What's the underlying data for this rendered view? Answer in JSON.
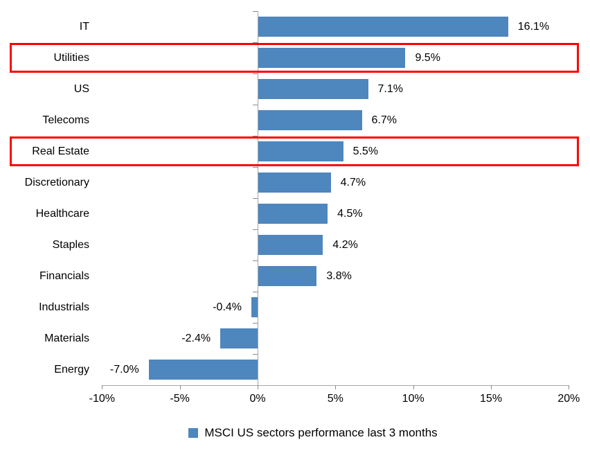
{
  "chart_data": {
    "type": "bar",
    "orientation": "horizontal",
    "title": "",
    "categories": [
      "IT",
      "Utilities",
      "US",
      "Telecoms",
      "Real Estate",
      "Discretionary",
      "Healthcare",
      "Staples",
      "Financials",
      "Industrials",
      "Materials",
      "Energy"
    ],
    "values": [
      16.1,
      9.5,
      7.1,
      6.7,
      5.5,
      4.7,
      4.5,
      4.2,
      3.8,
      -0.4,
      -2.4,
      -7.0
    ],
    "data_labels": [
      "16.1%",
      "9.5%",
      "7.1%",
      "6.7%",
      "5.5%",
      "4.7%",
      "4.5%",
      "4.2%",
      "3.8%",
      "-0.4%",
      "-2.4%",
      "-7.0%"
    ],
    "x_ticks": [
      "-10%",
      "-5%",
      "0%",
      "5%",
      "10%",
      "15%",
      "20%"
    ],
    "x_tick_values": [
      -10,
      -5,
      0,
      5,
      10,
      15,
      20
    ],
    "xlim": [
      -10,
      20
    ],
    "grid": "off",
    "legend": {
      "label": "MSCI US sectors performance last 3 months",
      "position": "bottom"
    },
    "highlighted_categories": [
      "Utilities",
      "Real Estate"
    ],
    "colors": {
      "bar": "#4e86be",
      "highlight_border": "#fe0000",
      "axis": "#a6a6a6",
      "tick": "#8a8a8a",
      "text": "#000000"
    }
  }
}
